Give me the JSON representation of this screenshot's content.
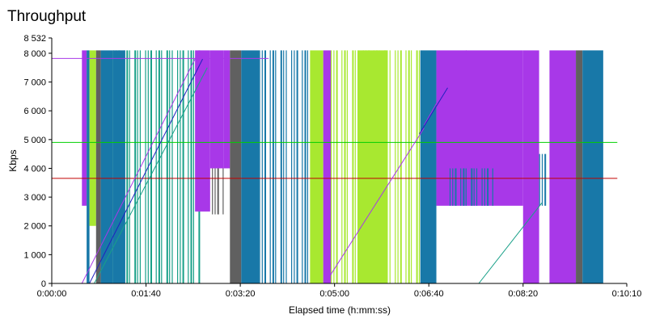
{
  "chart_data": {
    "type": "line",
    "title": "Throughput",
    "xlabel": "Elapsed time (h:mm:ss)",
    "ylabel": "Kbps",
    "x_range_seconds": [
      0,
      610
    ],
    "x_ticks": [
      {
        "value": 0,
        "label": "0:00:00"
      },
      {
        "value": 100,
        "label": "0:01:40"
      },
      {
        "value": 200,
        "label": "0:03:20"
      },
      {
        "value": 300,
        "label": "0:05:00"
      },
      {
        "value": 400,
        "label": "0:06:40"
      },
      {
        "value": 500,
        "label": "0:08:20"
      },
      {
        "value": 610,
        "label": "0:10:10"
      }
    ],
    "ylim": [
      0,
      8532
    ],
    "y_ticks": [
      {
        "value": 0,
        "label": "0"
      },
      {
        "value": 1000,
        "label": "1 000"
      },
      {
        "value": 2000,
        "label": "2 000"
      },
      {
        "value": 3000,
        "label": "3 000"
      },
      {
        "value": 4000,
        "label": "4 000"
      },
      {
        "value": 5000,
        "label": "5 000"
      },
      {
        "value": 6000,
        "label": "6 000"
      },
      {
        "value": 7000,
        "label": "7 000"
      },
      {
        "value": 8000,
        "label": "8 000"
      },
      {
        "value": 8532,
        "label": "8 532"
      }
    ],
    "grid": false,
    "legend": "none",
    "blocks": [
      {
        "x0": 32,
        "x1": 37,
        "lo": 2700,
        "hi": 8100,
        "color": "#a838e8"
      },
      {
        "x0": 37,
        "x1": 40,
        "lo": 0,
        "hi": 8100,
        "color": "#1878a8"
      },
      {
        "x0": 40,
        "x1": 47,
        "lo": 2000,
        "hi": 8100,
        "color": "#a8e830"
      },
      {
        "x0": 47,
        "x1": 52,
        "lo": 0,
        "hi": 8100,
        "color": "#606060"
      },
      {
        "x0": 52,
        "x1": 65,
        "lo": 0,
        "hi": 8100,
        "color": "#1878a8"
      },
      {
        "x0": 65,
        "x1": 158,
        "lo": 0,
        "hi": 8100,
        "color": "#18a088",
        "striped": true
      },
      {
        "x0": 65,
        "x1": 78,
        "lo": 0,
        "hi": 8100,
        "color": "#1878a8"
      },
      {
        "x0": 152,
        "x1": 168,
        "lo": 2500,
        "hi": 8100,
        "color": "#a838e8"
      },
      {
        "x0": 168,
        "x1": 182,
        "lo": 4000,
        "hi": 8100,
        "color": "#a838e8"
      },
      {
        "x0": 170,
        "x1": 182,
        "lo": 2400,
        "hi": 4000,
        "color": "#606060",
        "striped": true
      },
      {
        "x0": 182,
        "x1": 189,
        "lo": 4000,
        "hi": 8100,
        "color": "#a838e8"
      },
      {
        "x0": 189,
        "x1": 201,
        "lo": 0,
        "hi": 8100,
        "color": "#606060"
      },
      {
        "x0": 201,
        "x1": 220,
        "lo": 0,
        "hi": 8100,
        "color": "#1878a8"
      },
      {
        "x0": 220,
        "x1": 274,
        "lo": 0,
        "hi": 8100,
        "color": "#1878a8",
        "striped": true
      },
      {
        "x0": 274,
        "x1": 288,
        "lo": 0,
        "hi": 8100,
        "color": "#a8e830"
      },
      {
        "x0": 288,
        "x1": 296,
        "lo": 0,
        "hi": 8100,
        "color": "#a838e8"
      },
      {
        "x0": 296,
        "x1": 391,
        "lo": 0,
        "hi": 8100,
        "color": "#a8e830",
        "striped": true
      },
      {
        "x0": 325,
        "x1": 356,
        "lo": 0,
        "hi": 8100,
        "color": "#a8e830"
      },
      {
        "x0": 391,
        "x1": 408,
        "lo": 0,
        "hi": 8100,
        "color": "#1878a8"
      },
      {
        "x0": 408,
        "x1": 500,
        "lo": 2700,
        "hi": 8100,
        "color": "#a838e8"
      },
      {
        "x0": 422,
        "x1": 468,
        "lo": 2700,
        "hi": 4000,
        "color": "#1878a8",
        "striped": true
      },
      {
        "x0": 500,
        "x1": 517,
        "lo": 0,
        "hi": 8100,
        "color": "#a838e8"
      },
      {
        "x0": 517,
        "x1": 528,
        "lo": 2700,
        "hi": 4500,
        "color": "#1878a8",
        "striped": true
      },
      {
        "x0": 528,
        "x1": 556,
        "lo": 0,
        "hi": 8100,
        "color": "#a838e8"
      },
      {
        "x0": 556,
        "x1": 563,
        "lo": 0,
        "hi": 8100,
        "color": "#606060"
      },
      {
        "x0": 563,
        "x1": 585,
        "lo": 0,
        "hi": 8100,
        "color": "#1878a8"
      }
    ],
    "series": [
      {
        "color": "#c00000",
        "points": [
          [
            0,
            3650
          ],
          [
            600,
            3650
          ]
        ]
      },
      {
        "color": "#00d000",
        "points": [
          [
            0,
            4900
          ],
          [
            30,
            4900
          ],
          [
            600,
            4900
          ]
        ]
      },
      {
        "color": "#a838e8",
        "points": [
          [
            0,
            7820
          ],
          [
            230,
            7820
          ]
        ]
      },
      {
        "color": "#a838e8",
        "points": [
          [
            32,
            0
          ],
          [
            155,
            8000
          ]
        ]
      },
      {
        "color": "#2020c0",
        "points": [
          [
            40,
            0
          ],
          [
            160,
            7800
          ]
        ]
      },
      {
        "color": "#18a088",
        "points": [
          [
            45,
            0
          ],
          [
            165,
            7500
          ]
        ]
      },
      {
        "color": "#a838e8",
        "points": [
          [
            290,
            0
          ],
          [
            395,
            5400
          ]
        ]
      },
      {
        "color": "#a838e8",
        "points": [
          [
            395,
            5500
          ],
          [
            440,
            8100
          ]
        ]
      },
      {
        "color": "#2020c0",
        "points": [
          [
            390,
            5200
          ],
          [
            420,
            6800
          ]
        ]
      },
      {
        "color": "#18a088",
        "points": [
          [
            453,
            0
          ],
          [
            520,
            2800
          ]
        ]
      },
      {
        "color": "#404040",
        "points": [
          [
            0,
            0
          ],
          [
            610,
            0
          ]
        ]
      }
    ]
  }
}
